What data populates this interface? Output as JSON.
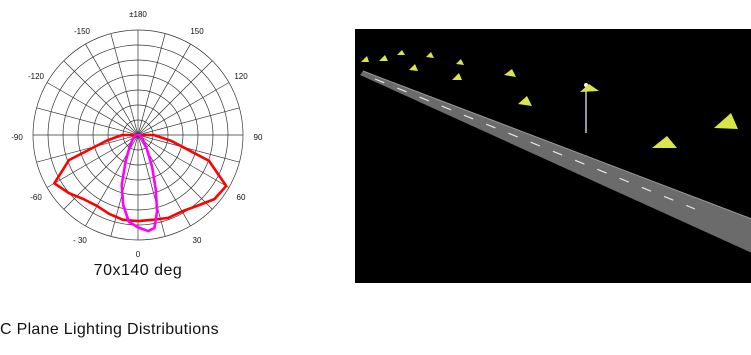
{
  "chart_data": {
    "type": "polar",
    "caption": "70x140 deg",
    "angle_labels": [
      "±180",
      "-150",
      "150",
      "-120",
      "120",
      "-90",
      "90",
      "-60",
      "60",
      "- 30",
      "30",
      "0"
    ],
    "series": [
      {
        "color": "#ff0000",
        "points": [
          [
            -90,
            0.15
          ],
          [
            -80,
            0.3
          ],
          [
            -70,
            0.7
          ],
          [
            -60,
            0.92
          ],
          [
            -50,
            0.86
          ],
          [
            -40,
            0.8
          ],
          [
            -30,
            0.78
          ],
          [
            -20,
            0.8
          ],
          [
            -10,
            0.82
          ],
          [
            0,
            0.82
          ],
          [
            10,
            0.82
          ],
          [
            20,
            0.84
          ],
          [
            30,
            0.84
          ],
          [
            40,
            0.88
          ],
          [
            50,
            0.95
          ],
          [
            60,
            0.97
          ],
          [
            70,
            0.72
          ],
          [
            80,
            0.32
          ],
          [
            90,
            0.15
          ]
        ]
      },
      {
        "color": "#ff00ff",
        "points": [
          [
            -90,
            0.02
          ],
          [
            -60,
            0.05
          ],
          [
            -45,
            0.08
          ],
          [
            -35,
            0.14
          ],
          [
            -25,
            0.28
          ],
          [
            -18,
            0.5
          ],
          [
            -12,
            0.68
          ],
          [
            -6,
            0.83
          ],
          [
            0,
            0.88
          ],
          [
            6,
            0.92
          ],
          [
            10,
            0.9
          ],
          [
            14,
            0.75
          ],
          [
            18,
            0.55
          ],
          [
            24,
            0.33
          ],
          [
            32,
            0.16
          ],
          [
            45,
            0.07
          ],
          [
            60,
            0.03
          ],
          [
            90,
            0.02
          ]
        ]
      }
    ]
  },
  "footer_title": "C Plane Lighting Distributions",
  "colors": {
    "grid": "#333333",
    "road_background": "#000000",
    "road_surface": "#6b6b6b",
    "lamp_light": "#d8e64a"
  }
}
